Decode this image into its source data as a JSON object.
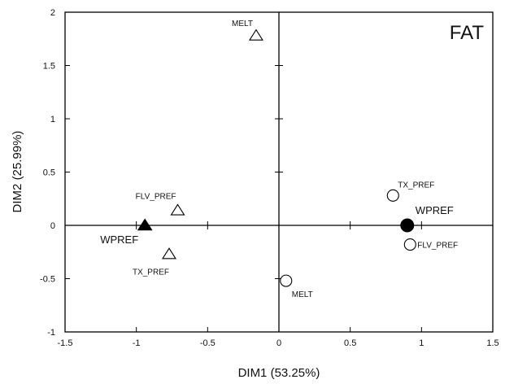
{
  "chart_data": {
    "type": "scatter",
    "title": "",
    "panel_label": "FAT",
    "xlabel": "DIM1 (53.25%)",
    "ylabel": "DIM2 (25.99%)",
    "xlim": [
      -1.5,
      1.5
    ],
    "ylim": [
      -1,
      2
    ],
    "xticks": [
      -1.5,
      -1,
      -0.5,
      0,
      0.5,
      1,
      1.5
    ],
    "xtick_labels": [
      "-1.5",
      "-1",
      "-0.5",
      "0",
      "0.5",
      "1",
      "1.5"
    ],
    "yticks": [
      -1,
      -0.5,
      0,
      0.5,
      1,
      1.5,
      2
    ],
    "ytick_labels": [
      "-1",
      "-0.5",
      "0",
      "0.5",
      "1",
      "1.5",
      "2"
    ],
    "grid": false,
    "legend": "none",
    "series": [
      {
        "marker": "triangle-open",
        "points": [
          {
            "label": "MELT",
            "x": -0.16,
            "y": 1.78
          },
          {
            "label": "FLV_PREF",
            "x": -0.71,
            "y": 0.14
          },
          {
            "label": "TX_PREF",
            "x": -0.77,
            "y": -0.27
          }
        ]
      },
      {
        "marker": "triangle-filled",
        "points": [
          {
            "label": "WPREF",
            "x": -0.94,
            "y": 0.0
          }
        ]
      },
      {
        "marker": "circle-open",
        "points": [
          {
            "label": "TX_PREF",
            "x": 0.8,
            "y": 0.28
          },
          {
            "label": "FLV_PREF",
            "x": 0.92,
            "y": -0.18
          },
          {
            "label": "MELT",
            "x": 0.05,
            "y": -0.52
          }
        ]
      },
      {
        "marker": "circle-filled",
        "points": [
          {
            "label": "WPREF",
            "x": 0.9,
            "y": 0.0
          }
        ]
      }
    ]
  }
}
